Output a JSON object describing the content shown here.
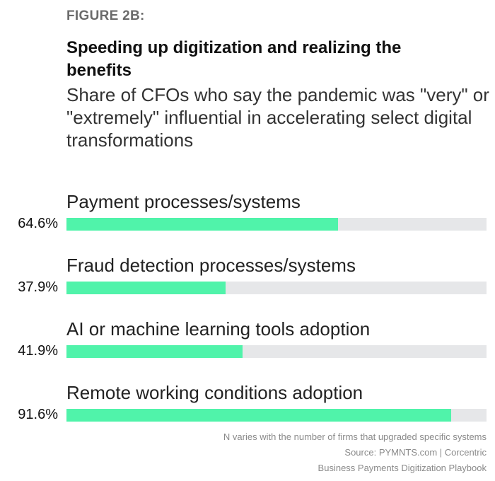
{
  "chart_data": {
    "type": "bar",
    "orientation": "horizontal",
    "figure_label": "FIGURE 2B:",
    "title": "Speeding up digitization and realizing the benefits",
    "subtitle": "Share of CFOs who say the pandemic was \"very\" or \"extremely\" influential in accelerating select digital transformations",
    "categories": [
      "Payment processes/systems",
      "Fraud detection processes/systems",
      "AI or machine learning tools adoption",
      "Remote working conditions adoption"
    ],
    "values": [
      64.6,
      37.9,
      41.9,
      91.6
    ],
    "value_labels": [
      "64.6%",
      "37.9%",
      "41.9%",
      "91.6%"
    ],
    "xlim": [
      0,
      100
    ],
    "unit": "%",
    "grid": false,
    "colors": {
      "bar": "#50f3aa",
      "track": "#e6e7e9"
    },
    "notes": [
      "N varies with the number of firms that upgraded specific systems",
      "Source: PYMNTS.com | Corcentric",
      "Business Payments Digitization Playbook"
    ]
  }
}
